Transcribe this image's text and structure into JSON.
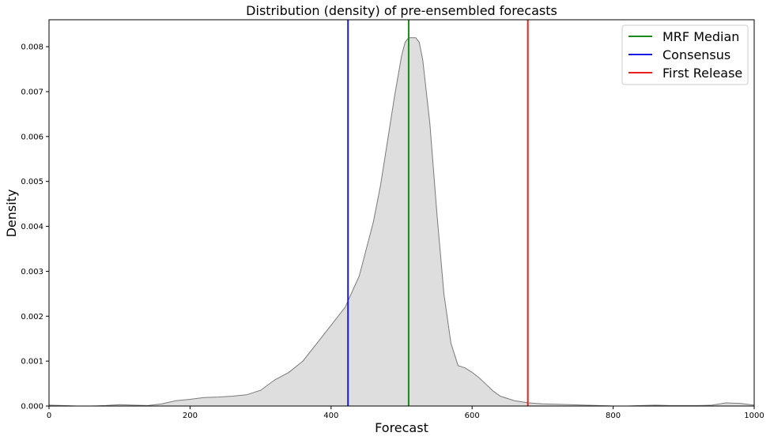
{
  "chart_data": {
    "type": "area",
    "title": "Distribution (density) of pre-ensembled forecasts",
    "xlabel": "Forecast",
    "ylabel": "Density",
    "xlim": [
      0,
      1000
    ],
    "ylim": [
      0,
      0.0086
    ],
    "x_ticks": [
      0,
      200,
      400,
      600,
      800,
      1000
    ],
    "y_ticks": [
      0.0,
      0.001,
      0.002,
      0.003,
      0.004,
      0.005,
      0.006,
      0.007,
      0.008
    ],
    "x_tick_labels": [
      "0",
      "200",
      "400",
      "600",
      "800",
      "1000"
    ],
    "y_tick_labels": [
      "0.000",
      "0.001",
      "0.002",
      "0.003",
      "0.004",
      "0.005",
      "0.006",
      "0.007",
      "0.008"
    ],
    "grid": false,
    "legend_position": "top-right",
    "density_curve": {
      "fill_color": "#dedede",
      "line_color": "#7a7a7a",
      "x": [
        0,
        20,
        40,
        60,
        80,
        100,
        120,
        140,
        160,
        180,
        200,
        220,
        240,
        260,
        280,
        300,
        320,
        340,
        360,
        380,
        400,
        420,
        440,
        460,
        470,
        480,
        490,
        500,
        505,
        510,
        515,
        520,
        525,
        530,
        540,
        550,
        560,
        570,
        580,
        590,
        600,
        610,
        620,
        630,
        640,
        660,
        680,
        700,
        720,
        740,
        760,
        780,
        800,
        820,
        840,
        860,
        880,
        900,
        920,
        940,
        960,
        980,
        1000
      ],
      "y": [
        2e-05,
        1e-05,
        0.0,
        0.0,
        1e-05,
        3e-05,
        2e-05,
        1e-05,
        5e-05,
        0.00012,
        0.00015,
        0.00019,
        0.0002,
        0.00022,
        0.00025,
        0.00035,
        0.00058,
        0.00075,
        0.001,
        0.0014,
        0.0018,
        0.0022,
        0.0029,
        0.0041,
        0.0049,
        0.0059,
        0.0069,
        0.0078,
        0.0081,
        0.0082,
        0.0082,
        0.0082,
        0.0081,
        0.0077,
        0.0063,
        0.0043,
        0.0025,
        0.0014,
        0.0009,
        0.00085,
        0.00075,
        0.00063,
        0.00048,
        0.00033,
        0.00022,
        0.00012,
        7e-05,
        5e-05,
        4e-05,
        3e-05,
        2e-05,
        1e-05,
        0.0,
        0.0,
        1e-05,
        2e-05,
        1e-05,
        1e-05,
        1e-05,
        2e-05,
        7e-05,
        6e-05,
        2e-05
      ]
    },
    "vlines": [
      {
        "name": "MRF Median",
        "x": 510,
        "color": "#1a8a1a"
      },
      {
        "name": "Consensus",
        "x": 424,
        "color": "#1a1ae6"
      },
      {
        "name": "First Release",
        "x": 679,
        "color": "#e8221a"
      }
    ]
  }
}
